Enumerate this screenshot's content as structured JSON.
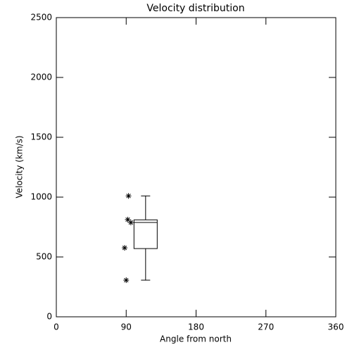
{
  "chart_data": {
    "type": "box",
    "title": "Velocity distribution",
    "xlabel": "Angle from north",
    "ylabel": "Velocity (km/s)",
    "xlim": [
      0,
      360
    ],
    "ylim": [
      0,
      2500
    ],
    "xticks": [
      0,
      90,
      180,
      270,
      360
    ],
    "yticks": [
      0,
      500,
      1000,
      1500,
      2000,
      2500
    ],
    "boxes": [
      {
        "x": 115,
        "min": 306,
        "q1": 570,
        "median": 788,
        "q3": 810,
        "max": 1010
      }
    ],
    "points": {
      "x": [
        93,
        92,
        96,
        88,
        90
      ],
      "y": [
        1010,
        812,
        788,
        576,
        306
      ]
    },
    "color": "#000000"
  }
}
